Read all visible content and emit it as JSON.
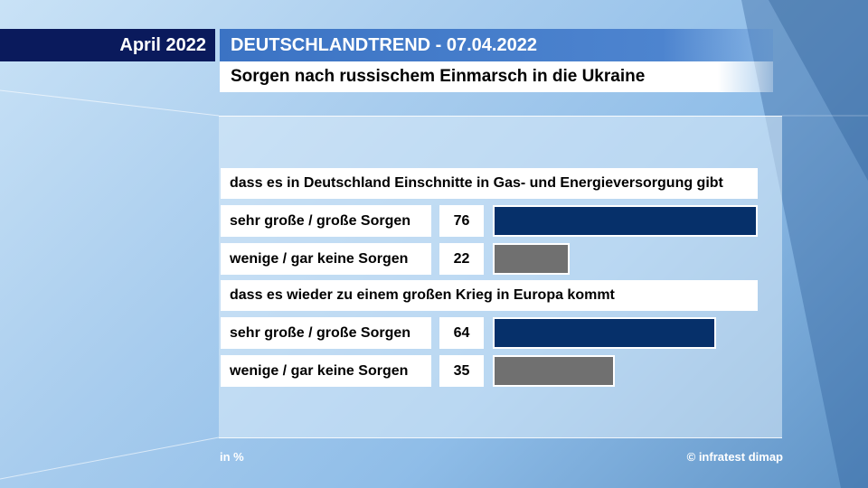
{
  "date_label": "April 2022",
  "header": {
    "title": "DEUTSCHLANDTREND - 07.04.2022",
    "subtitle": "Sorgen nach russischem Einmarsch in die Ukraine"
  },
  "colors": {
    "high_concern": "#06306a",
    "low_concern": "#707070"
  },
  "chart_data": {
    "type": "bar",
    "title": "Sorgen nach russischem Einmarsch in die Ukraine",
    "unit_note": "in %",
    "xlim": [
      0,
      76
    ],
    "groups": [
      {
        "question": "dass es in Deutschland Einschnitte in Gas- und Energieversorgung gibt",
        "rows": [
          {
            "label": "sehr große / große Sorgen",
            "value": 76,
            "value_text": "76",
            "color": "#06306a"
          },
          {
            "label": "wenige / gar keine Sorgen",
            "value": 22,
            "value_text": "22",
            "color": "#707070"
          }
        ]
      },
      {
        "question": "dass es wieder zu einem großen Krieg in Europa kommt",
        "rows": [
          {
            "label": "sehr große / große Sorgen",
            "value": 64,
            "value_text": "64",
            "color": "#06306a"
          },
          {
            "label": "wenige / gar keine Sorgen",
            "value": 35,
            "value_text": "35",
            "color": "#707070"
          }
        ]
      }
    ]
  },
  "footer": {
    "unit": "in %",
    "source": "© infratest dimap"
  }
}
